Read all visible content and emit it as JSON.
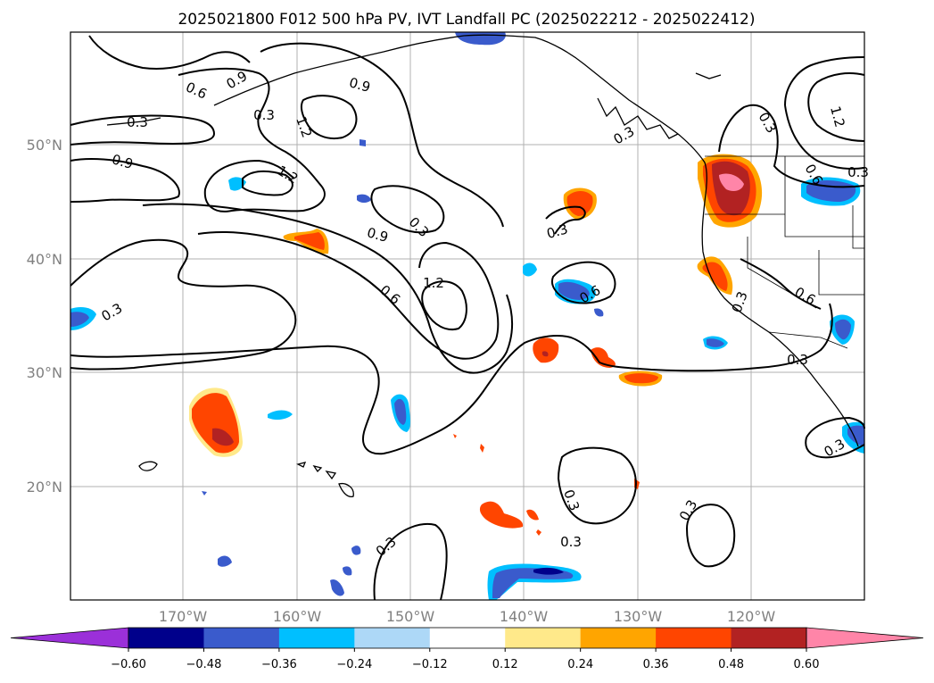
{
  "title": "2025021800 F012 500 hPa PV, IVT Landfall PC (2025022212 - 2025022412)",
  "lat_labels": [
    "50°N",
    "40°N",
    "30°N",
    "20°N"
  ],
  "lon_labels": [
    "170°W",
    "160°W",
    "150°W",
    "140°W",
    "130°W",
    "120°W"
  ],
  "contour_labels": [
    "0.6",
    "0.9",
    "0.3",
    "0.9",
    "1.2",
    "0.9",
    "1.2",
    "0.9",
    "0.3",
    "1.2",
    "0.6",
    "0.3",
    "0.3",
    "0.3",
    "0.6",
    "0.3",
    "0.6",
    "0.3",
    "1.2",
    "0.3",
    "0.6",
    "0.3",
    "0.3",
    "0.3",
    "0.3",
    "0.3",
    "0.3",
    "0.3"
  ],
  "colorbar": {
    "tick_labels": [
      "−0.60",
      "−0.48",
      "−0.36",
      "−0.24",
      "−0.12",
      "0.12",
      "0.24",
      "0.36",
      "0.48",
      "0.60"
    ],
    "colors": [
      "#9b30d9",
      "#00008b",
      "#3a5bcc",
      "#00bfff",
      "#add8f7",
      "#ffffff",
      "#ffe98a",
      "#ffa500",
      "#ff4500",
      "#b22222",
      "#ff85a8"
    ]
  }
}
